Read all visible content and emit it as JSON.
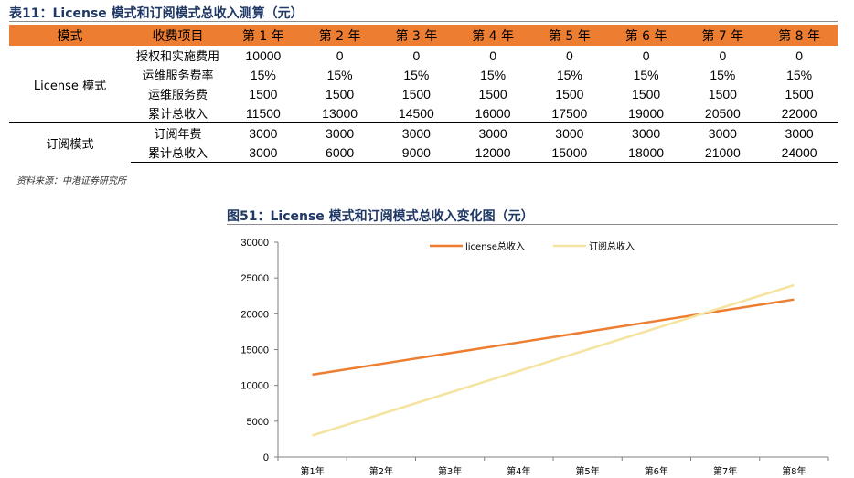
{
  "table": {
    "title": "表11：License 模式和订阅模式总收入测算（元）",
    "header": [
      "模式",
      "收费项目",
      "第 1 年",
      "第 2 年",
      "第 3 年",
      "第 4 年",
      "第 5 年",
      "第 6 年",
      "第 7 年",
      "第 8 年"
    ],
    "groups": [
      {
        "name": "License 模式",
        "rows": [
          {
            "item": "授权和实施费用",
            "values": [
              "10000",
              "0",
              "0",
              "0",
              "0",
              "0",
              "0",
              "0"
            ]
          },
          {
            "item": "运维服务费率",
            "values": [
              "15%",
              "15%",
              "15%",
              "15%",
              "15%",
              "15%",
              "15%",
              "15%"
            ]
          },
          {
            "item": "运维服务费",
            "values": [
              "1500",
              "1500",
              "1500",
              "1500",
              "1500",
              "1500",
              "1500",
              "1500"
            ]
          },
          {
            "item": "累计总收入",
            "values": [
              "11500",
              "13000",
              "14500",
              "16000",
              "17500",
              "19000",
              "20500",
              "22000"
            ]
          }
        ]
      },
      {
        "name": "订阅模式",
        "rows": [
          {
            "item": "订阅年费",
            "values": [
              "3000",
              "3000",
              "3000",
              "3000",
              "3000",
              "3000",
              "3000",
              "3000"
            ]
          },
          {
            "item": "累计总收入",
            "values": [
              "3000",
              "6000",
              "9000",
              "12000",
              "15000",
              "18000",
              "21000",
              "24000"
            ]
          }
        ]
      }
    ],
    "source": "资料来源：中港证券研究所"
  },
  "chart_data": {
    "type": "line",
    "title": "图51：License 模式和订阅模式总收入变化图（元）",
    "categories": [
      "第1年",
      "第2年",
      "第3年",
      "第4年",
      "第5年",
      "第6年",
      "第7年",
      "第8年"
    ],
    "series": [
      {
        "name": "license总收入",
        "color": "#ed7d31",
        "values": [
          11500,
          13000,
          14500,
          16000,
          17500,
          19000,
          20500,
          22000
        ]
      },
      {
        "name": "订阅总收入",
        "color": "#f5e3a0",
        "values": [
          3000,
          6000,
          9000,
          12000,
          15000,
          18000,
          21000,
          24000
        ]
      }
    ],
    "ylim": [
      0,
      30000
    ],
    "yticks": [
      0,
      5000,
      10000,
      15000,
      20000,
      25000,
      30000
    ],
    "legend": "top-center",
    "grid": false,
    "xlabel": "",
    "ylabel": ""
  }
}
